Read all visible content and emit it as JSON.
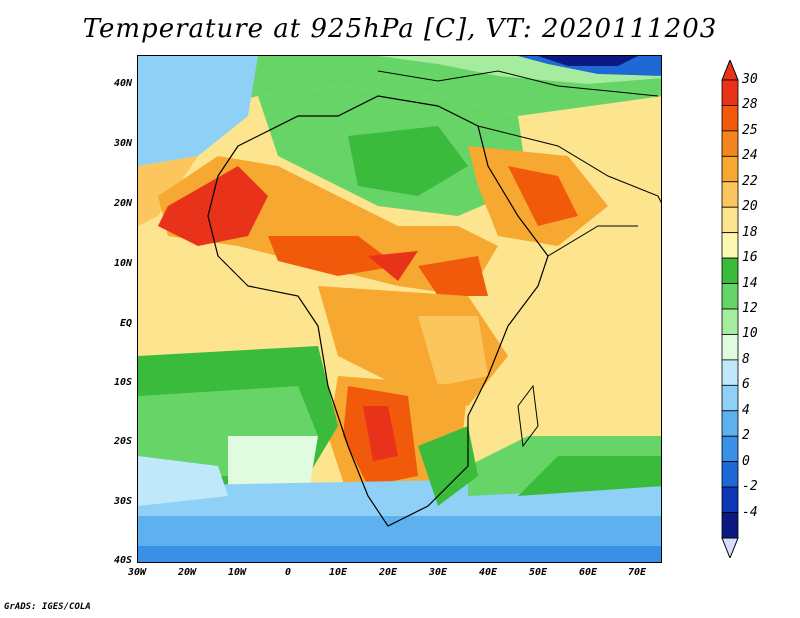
{
  "title": "Temperature at 925hPa [C], VT: 2020111203",
  "latitude_labels": [
    "40N",
    "30N",
    "20N",
    "10N",
    "EQ",
    "10S",
    "20S",
    "30S",
    "40S"
  ],
  "longitude_labels": [
    "30W",
    "20W",
    "10W",
    "0",
    "10E",
    "20E",
    "30E",
    "40E",
    "50E",
    "60E",
    "70E"
  ],
  "colorbar": {
    "labels": [
      "30",
      "28",
      "25",
      "24",
      "22",
      "20",
      "18",
      "16",
      "14",
      "12",
      "10",
      "8",
      "6",
      "4",
      "2",
      "0",
      "-2",
      "-4"
    ],
    "colors": [
      "#e8321a",
      "#f05a0a",
      "#f5861e",
      "#f7a830",
      "#fcc65e",
      "#fde48e",
      "#fdf7b4",
      "#3bbb3b",
      "#66d466",
      "#a6ec9e",
      "#e0fbe0",
      "#bfe9fb",
      "#8fd0f6",
      "#5fb0ef",
      "#3a8fe6",
      "#1f69d6",
      "#1036b8",
      "#0b1a80"
    ],
    "top_color": "#e8321a",
    "bottom_color": "#d8dcff"
  },
  "credit": "GrADS: IGES/COLA"
}
